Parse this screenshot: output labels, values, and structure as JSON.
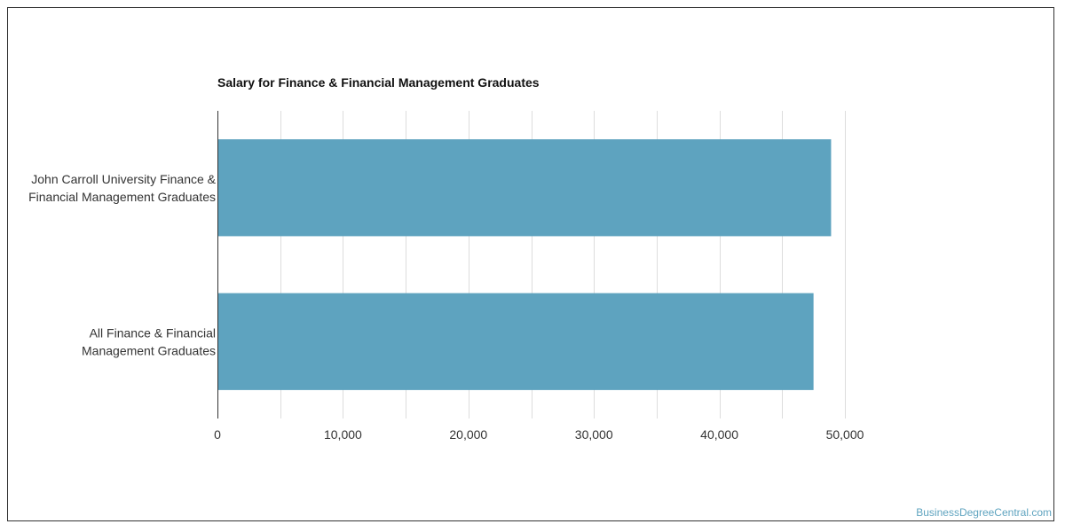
{
  "chart_data": {
    "type": "bar",
    "orientation": "horizontal",
    "title": "Salary for Finance & Financial Management Graduates",
    "categories": [
      [
        "John Carroll University Finance &",
        "Financial Management Graduates"
      ],
      [
        "All Finance & Financial",
        "Management Graduates"
      ]
    ],
    "values": [
      48900,
      47500
    ],
    "xlim": [
      0,
      50000
    ],
    "x_ticks": [
      0,
      10000,
      20000,
      30000,
      40000,
      50000
    ],
    "x_tick_labels": [
      "0",
      "10,000",
      "20,000",
      "30,000",
      "40,000",
      "50,000"
    ],
    "xlabel": "",
    "ylabel": "",
    "grid": true,
    "bar_color": "#5ea3bf",
    "grid_color": "#dddddd"
  },
  "watermark": "BusinessDegreeCentral.com"
}
